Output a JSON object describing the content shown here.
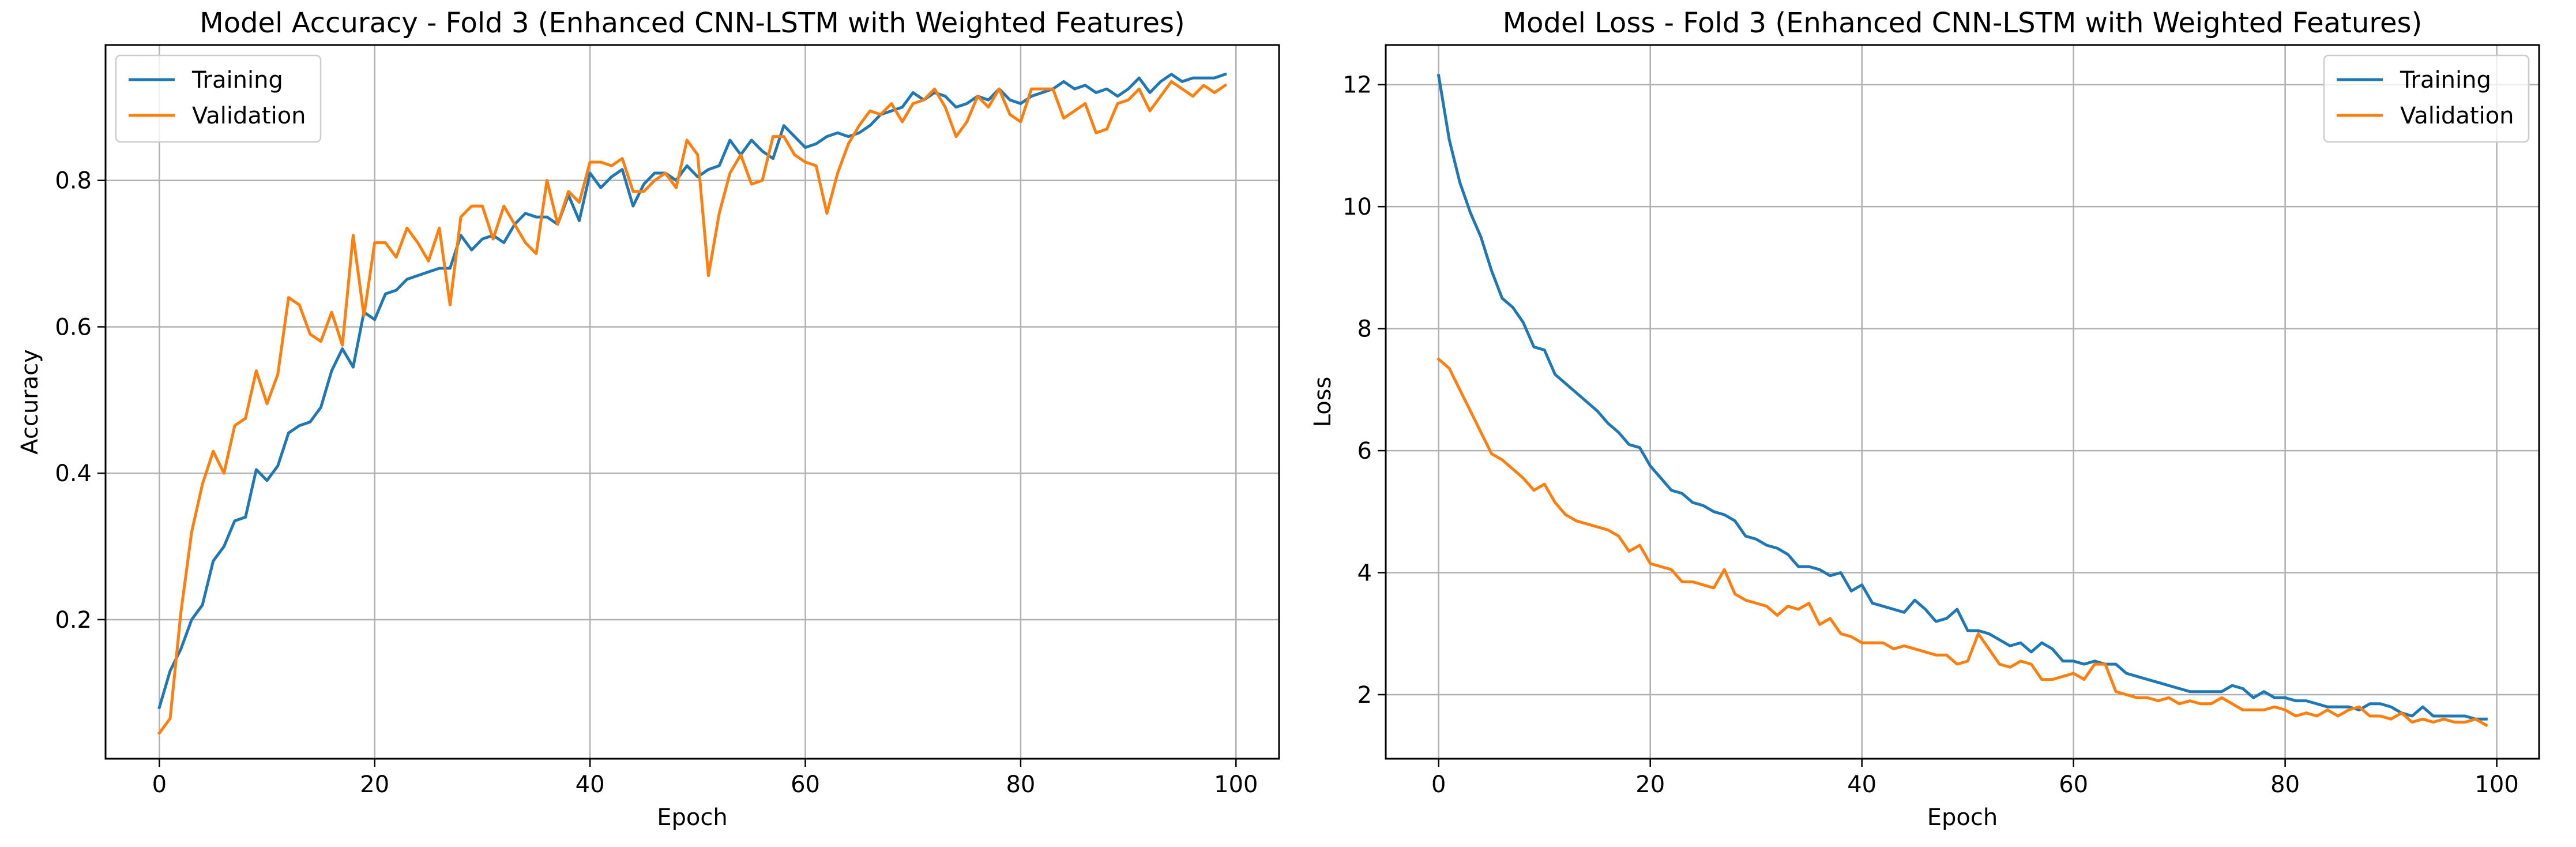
{
  "chart_data": [
    {
      "type": "line",
      "title": "Model Accuracy - Fold 3 (Enhanced CNN-LSTM with Weighted Features)",
      "xlabel": "Epoch",
      "ylabel": "Accuracy",
      "xlim": [
        -5,
        104
      ],
      "ylim": [
        0.01,
        0.985
      ],
      "xticks": [
        0,
        20,
        40,
        60,
        80,
        100
      ],
      "xtick_labels": [
        "0",
        "20",
        "40",
        "60",
        "80",
        "100"
      ],
      "yticks": [
        0.2,
        0.4,
        0.6,
        0.8
      ],
      "ytick_labels": [
        "0.2",
        "0.4",
        "0.6",
        "0.8"
      ],
      "grid": true,
      "legend_position": "upper-left",
      "series": [
        {
          "name": "Training",
          "color": "#1f77b4",
          "x": [
            0,
            1,
            2,
            3,
            4,
            5,
            6,
            7,
            8,
            9,
            10,
            11,
            12,
            13,
            14,
            15,
            16,
            17,
            18,
            19,
            20,
            21,
            22,
            23,
            24,
            25,
            26,
            27,
            28,
            29,
            30,
            31,
            32,
            33,
            34,
            35,
            36,
            37,
            38,
            39,
            40,
            41,
            42,
            43,
            44,
            45,
            46,
            47,
            48,
            49,
            50,
            51,
            52,
            53,
            54,
            55,
            56,
            57,
            58,
            59,
            60,
            61,
            62,
            63,
            64,
            65,
            66,
            67,
            68,
            69,
            70,
            71,
            72,
            73,
            74,
            75,
            76,
            77,
            78,
            79,
            80,
            81,
            82,
            83,
            84,
            85,
            86,
            87,
            88,
            89,
            90,
            91,
            92,
            93,
            94,
            95,
            96,
            97,
            98,
            99
          ],
          "y": [
            0.08,
            0.13,
            0.16,
            0.2,
            0.22,
            0.28,
            0.3,
            0.335,
            0.34,
            0.405,
            0.39,
            0.41,
            0.455,
            0.465,
            0.47,
            0.49,
            0.54,
            0.57,
            0.545,
            0.62,
            0.61,
            0.645,
            0.65,
            0.665,
            0.67,
            0.675,
            0.68,
            0.68,
            0.725,
            0.705,
            0.72,
            0.725,
            0.715,
            0.74,
            0.755,
            0.75,
            0.75,
            0.74,
            0.78,
            0.745,
            0.81,
            0.79,
            0.805,
            0.815,
            0.765,
            0.795,
            0.81,
            0.81,
            0.8,
            0.82,
            0.805,
            0.815,
            0.82,
            0.855,
            0.835,
            0.855,
            0.84,
            0.83,
            0.875,
            0.86,
            0.845,
            0.85,
            0.86,
            0.865,
            0.86,
            0.865,
            0.875,
            0.89,
            0.895,
            0.9,
            0.92,
            0.91,
            0.92,
            0.915,
            0.9,
            0.905,
            0.915,
            0.91,
            0.925,
            0.91,
            0.905,
            0.915,
            0.92,
            0.925,
            0.935,
            0.925,
            0.93,
            0.92,
            0.925,
            0.915,
            0.925,
            0.94,
            0.92,
            0.935,
            0.945,
            0.935,
            0.94,
            0.94,
            0.94,
            0.945
          ]
        },
        {
          "name": "Validation",
          "color": "#ff7f0e",
          "x": [
            0,
            1,
            2,
            3,
            4,
            5,
            6,
            7,
            8,
            9,
            10,
            11,
            12,
            13,
            14,
            15,
            16,
            17,
            18,
            19,
            20,
            21,
            22,
            23,
            24,
            25,
            26,
            27,
            28,
            29,
            30,
            31,
            32,
            33,
            34,
            35,
            36,
            37,
            38,
            39,
            40,
            41,
            42,
            43,
            44,
            45,
            46,
            47,
            48,
            49,
            50,
            51,
            52,
            53,
            54,
            55,
            56,
            57,
            58,
            59,
            60,
            61,
            62,
            63,
            64,
            65,
            66,
            67,
            68,
            69,
            70,
            71,
            72,
            73,
            74,
            75,
            76,
            77,
            78,
            79,
            80,
            81,
            82,
            83,
            84,
            85,
            86,
            87,
            88,
            89,
            90,
            91,
            92,
            93,
            94,
            95,
            96,
            97,
            98,
            99
          ],
          "y": [
            0.045,
            0.065,
            0.21,
            0.32,
            0.385,
            0.43,
            0.4,
            0.465,
            0.475,
            0.54,
            0.495,
            0.535,
            0.64,
            0.63,
            0.59,
            0.58,
            0.62,
            0.575,
            0.725,
            0.615,
            0.715,
            0.715,
            0.695,
            0.735,
            0.715,
            0.69,
            0.735,
            0.63,
            0.75,
            0.765,
            0.765,
            0.72,
            0.765,
            0.74,
            0.715,
            0.7,
            0.8,
            0.74,
            0.785,
            0.77,
            0.825,
            0.825,
            0.82,
            0.83,
            0.785,
            0.785,
            0.8,
            0.81,
            0.79,
            0.855,
            0.835,
            0.67,
            0.755,
            0.81,
            0.835,
            0.795,
            0.8,
            0.86,
            0.86,
            0.835,
            0.825,
            0.82,
            0.755,
            0.81,
            0.85,
            0.875,
            0.895,
            0.89,
            0.905,
            0.88,
            0.905,
            0.91,
            0.925,
            0.9,
            0.86,
            0.88,
            0.915,
            0.9,
            0.925,
            0.89,
            0.88,
            0.925,
            0.925,
            0.925,
            0.885,
            0.895,
            0.905,
            0.865,
            0.87,
            0.905,
            0.91,
            0.925,
            0.895,
            0.915,
            0.935,
            0.925,
            0.915,
            0.93,
            0.92,
            0.93
          ]
        }
      ]
    },
    {
      "type": "line",
      "title": "Model Loss - Fold 3 (Enhanced CNN-LSTM with Weighted Features)",
      "xlabel": "Epoch",
      "ylabel": "Loss",
      "xlim": [
        -5,
        104
      ],
      "ylim": [
        0.95,
        12.65
      ],
      "xticks": [
        0,
        20,
        40,
        60,
        80,
        100
      ],
      "xtick_labels": [
        "0",
        "20",
        "40",
        "60",
        "80",
        "100"
      ],
      "yticks": [
        2,
        4,
        6,
        8,
        10,
        12
      ],
      "ytick_labels": [
        "2",
        "4",
        "6",
        "8",
        "10",
        "12"
      ],
      "grid": true,
      "legend_position": "upper-right",
      "series": [
        {
          "name": "Training",
          "color": "#1f77b4",
          "x": [
            0,
            1,
            2,
            3,
            4,
            5,
            6,
            7,
            8,
            9,
            10,
            11,
            12,
            13,
            14,
            15,
            16,
            17,
            18,
            19,
            20,
            21,
            22,
            23,
            24,
            25,
            26,
            27,
            28,
            29,
            30,
            31,
            32,
            33,
            34,
            35,
            36,
            37,
            38,
            39,
            40,
            41,
            42,
            43,
            44,
            45,
            46,
            47,
            48,
            49,
            50,
            51,
            52,
            53,
            54,
            55,
            56,
            57,
            58,
            59,
            60,
            61,
            62,
            63,
            64,
            65,
            66,
            67,
            68,
            69,
            70,
            71,
            72,
            73,
            74,
            75,
            76,
            77,
            78,
            79,
            80,
            81,
            82,
            83,
            84,
            85,
            86,
            87,
            88,
            89,
            90,
            91,
            92,
            93,
            94,
            95,
            96,
            97,
            98,
            99
          ],
          "y": [
            12.15,
            11.1,
            10.4,
            9.9,
            9.5,
            8.95,
            8.5,
            8.35,
            8.1,
            7.7,
            7.65,
            7.25,
            7.1,
            6.95,
            6.8,
            6.65,
            6.45,
            6.3,
            6.1,
            6.05,
            5.75,
            5.55,
            5.35,
            5.3,
            5.15,
            5.1,
            5.0,
            4.95,
            4.85,
            4.6,
            4.55,
            4.45,
            4.4,
            4.3,
            4.1,
            4.1,
            4.05,
            3.95,
            4.0,
            3.7,
            3.8,
            3.5,
            3.45,
            3.4,
            3.35,
            3.55,
            3.4,
            3.2,
            3.25,
            3.4,
            3.05,
            3.05,
            3.0,
            2.9,
            2.8,
            2.85,
            2.7,
            2.85,
            2.75,
            2.55,
            2.55,
            2.5,
            2.55,
            2.5,
            2.5,
            2.35,
            2.3,
            2.25,
            2.2,
            2.15,
            2.1,
            2.05,
            2.05,
            2.05,
            2.05,
            2.15,
            2.1,
            1.95,
            2.05,
            1.95,
            1.95,
            1.9,
            1.9,
            1.85,
            1.8,
            1.8,
            1.8,
            1.75,
            1.85,
            1.85,
            1.8,
            1.7,
            1.65,
            1.8,
            1.65,
            1.65,
            1.65,
            1.65,
            1.6,
            1.6
          ]
        },
        {
          "name": "Validation",
          "color": "#ff7f0e",
          "x": [
            0,
            1,
            2,
            3,
            4,
            5,
            6,
            7,
            8,
            9,
            10,
            11,
            12,
            13,
            14,
            15,
            16,
            17,
            18,
            19,
            20,
            21,
            22,
            23,
            24,
            25,
            26,
            27,
            28,
            29,
            30,
            31,
            32,
            33,
            34,
            35,
            36,
            37,
            38,
            39,
            40,
            41,
            42,
            43,
            44,
            45,
            46,
            47,
            48,
            49,
            50,
            51,
            52,
            53,
            54,
            55,
            56,
            57,
            58,
            59,
            60,
            61,
            62,
            63,
            64,
            65,
            66,
            67,
            68,
            69,
            70,
            71,
            72,
            73,
            74,
            75,
            76,
            77,
            78,
            79,
            80,
            81,
            82,
            83,
            84,
            85,
            86,
            87,
            88,
            89,
            90,
            91,
            92,
            93,
            94,
            95,
            96,
            97,
            98,
            99
          ],
          "y": [
            7.5,
            7.35,
            7.0,
            6.65,
            6.3,
            5.95,
            5.85,
            5.7,
            5.55,
            5.35,
            5.45,
            5.15,
            4.95,
            4.85,
            4.8,
            4.75,
            4.7,
            4.6,
            4.35,
            4.45,
            4.15,
            4.1,
            4.05,
            3.85,
            3.85,
            3.8,
            3.75,
            4.05,
            3.65,
            3.55,
            3.5,
            3.45,
            3.3,
            3.45,
            3.4,
            3.5,
            3.15,
            3.25,
            3.0,
            2.95,
            2.85,
            2.85,
            2.85,
            2.75,
            2.8,
            2.75,
            2.7,
            2.65,
            2.65,
            2.5,
            2.55,
            3.0,
            2.75,
            2.5,
            2.45,
            2.55,
            2.5,
            2.25,
            2.25,
            2.3,
            2.35,
            2.25,
            2.5,
            2.5,
            2.05,
            2.0,
            1.95,
            1.95,
            1.9,
            1.95,
            1.85,
            1.9,
            1.85,
            1.85,
            1.95,
            1.85,
            1.75,
            1.75,
            1.75,
            1.8,
            1.75,
            1.65,
            1.7,
            1.65,
            1.75,
            1.65,
            1.75,
            1.8,
            1.65,
            1.65,
            1.6,
            1.7,
            1.55,
            1.6,
            1.55,
            1.6,
            1.55,
            1.55,
            1.6,
            1.5
          ]
        }
      ]
    }
  ]
}
